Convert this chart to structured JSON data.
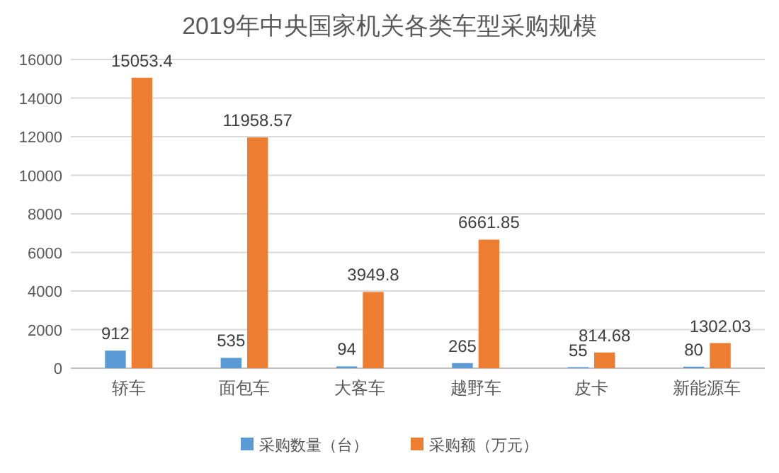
{
  "chart_data": {
    "type": "bar",
    "title": "2019年中央国家机关各类车型采购规模",
    "categories": [
      "轿车",
      "面包车",
      "大客车",
      "越野车",
      "皮卡",
      "新能源车"
    ],
    "series": [
      {
        "name": "采购数量（台）",
        "color": "#5b9bd5",
        "values": [
          912,
          535,
          94,
          265,
          55,
          80
        ]
      },
      {
        "name": "采购额（万元）",
        "color": "#ed7d31",
        "values": [
          15053.4,
          11958.57,
          3949.8,
          6661.85,
          814.68,
          1302.03
        ]
      }
    ],
    "ylim": [
      0,
      16000
    ],
    "yticks": [
      0,
      2000,
      4000,
      6000,
      8000,
      10000,
      12000,
      14000,
      16000
    ],
    "grid": "y",
    "legend": "bottom",
    "data_labels": true
  }
}
